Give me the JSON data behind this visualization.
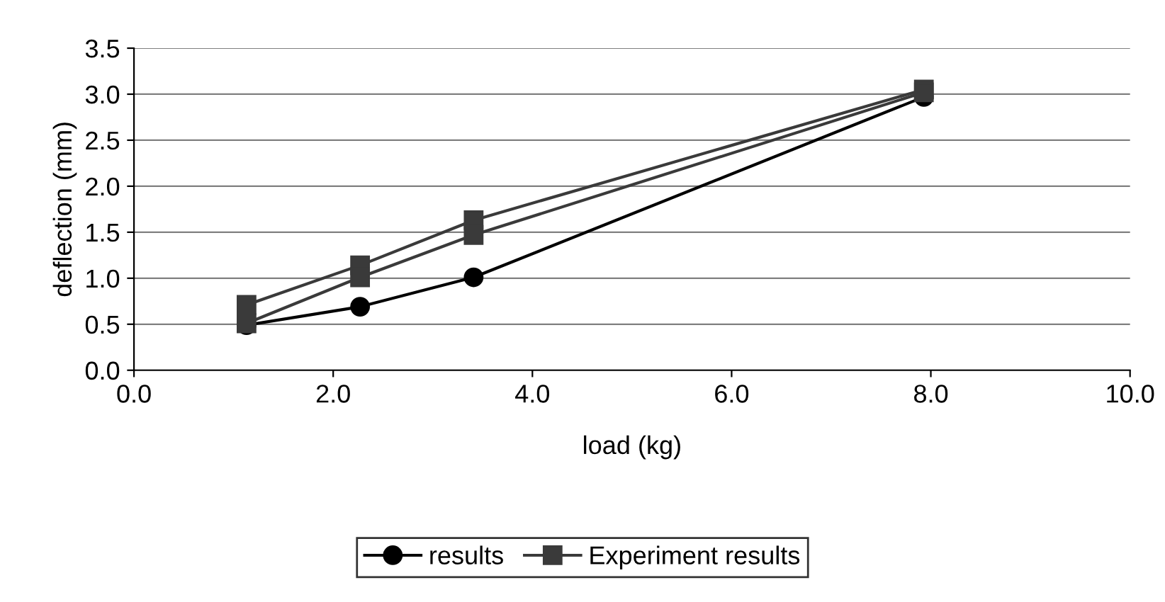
{
  "chart_data": {
    "type": "line",
    "xlabel": "load (kg)",
    "ylabel": "deflection (mm)",
    "xlim": [
      0,
      10
    ],
    "xticks": [
      {
        "value": 0,
        "label": "0.0"
      },
      {
        "value": 2,
        "label": "2.0"
      },
      {
        "value": 4,
        "label": "4.0"
      },
      {
        "value": 6,
        "label": "6.0"
      },
      {
        "value": 8,
        "label": "8.0"
      },
      {
        "value": 10,
        "label": "10.0"
      }
    ],
    "ylim": [
      0,
      3.5
    ],
    "yticks": [
      {
        "value": 0,
        "label": "0.0"
      },
      {
        "value": 0.5,
        "label": "0.5"
      },
      {
        "value": 1,
        "label": "1.0"
      },
      {
        "value": 1.5,
        "label": "1.5"
      },
      {
        "value": 2,
        "label": "2.0"
      },
      {
        "value": 2.5,
        "label": "2.5"
      },
      {
        "value": 3,
        "label": "3.0"
      },
      {
        "value": 3.5,
        "label": "3.5"
      }
    ],
    "grid": "y",
    "legend": "bottom",
    "line_style": "solid",
    "series": [
      {
        "name": "results",
        "color": "#000000",
        "marker": "circle",
        "x": [
          1.13,
          2.27,
          3.41,
          7.93
        ],
        "values": [
          0.49,
          0.69,
          1.01,
          2.97
        ]
      },
      {
        "name": "Experiment results",
        "color": "#3a3a3a",
        "marker": "square",
        "x": [
          1.13,
          2.27,
          3.41,
          7.93
        ],
        "values": [
          0.71,
          1.14,
          1.63,
          3.05
        ]
      },
      {
        "color": "#3a3a3a",
        "marker": "square",
        "x": [
          1.13,
          2.27,
          3.41,
          7.93
        ],
        "values": [
          0.51,
          1.01,
          1.47,
          3.02
        ]
      }
    ]
  }
}
